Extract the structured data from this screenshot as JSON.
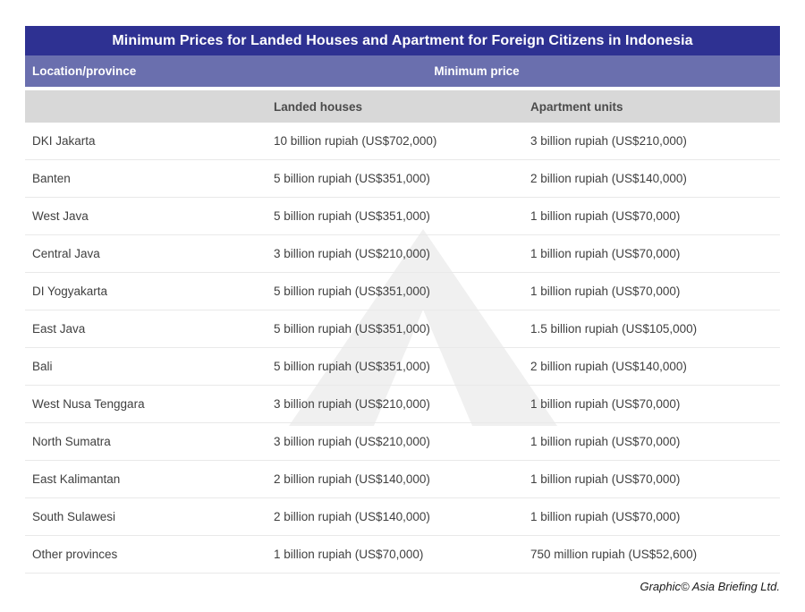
{
  "chart_data": {
    "type": "table",
    "title": "Minimum Prices for Landed Houses and Apartment for Foreign Citizens in Indonesia",
    "column_group": "Minimum price",
    "columns": [
      "Location/province",
      "Landed houses",
      "Apartment units"
    ],
    "rows": [
      {
        "location": "DKI Jakarta",
        "landed": "10 billion rupiah (US$702,000)",
        "apartment": "3 billion rupiah (US$210,000)"
      },
      {
        "location": "Banten",
        "landed": "5 billion rupiah (US$351,000)",
        "apartment": "2 billion rupiah (US$140,000)"
      },
      {
        "location": "West Java",
        "landed": "5 billion rupiah (US$351,000)",
        "apartment": "1 billion rupiah (US$70,000)"
      },
      {
        "location": "Central Java",
        "landed": "3 billion rupiah (US$210,000)",
        "apartment": "1 billion rupiah (US$70,000)"
      },
      {
        "location": "DI Yogyakarta",
        "landed": "5 billion rupiah (US$351,000)",
        "apartment": "1 billion rupiah (US$70,000)"
      },
      {
        "location": "East Java",
        "landed": "5 billion rupiah (US$351,000)",
        "apartment": "1.5 billion rupiah (US$105,000)"
      },
      {
        "location": "Bali",
        "landed": "5 billion rupiah (US$351,000)",
        "apartment": "2 billion rupiah (US$140,000)"
      },
      {
        "location": "West Nusa Tenggara",
        "landed": "3 billion rupiah (US$210,000)",
        "apartment": "1 billion rupiah (US$70,000)"
      },
      {
        "location": "North Sumatra",
        "landed": "3 billion rupiah (US$210,000)",
        "apartment": "1 billion rupiah (US$70,000)"
      },
      {
        "location": "East Kalimantan",
        "landed": "2 billion rupiah (US$140,000)",
        "apartment": "1 billion rupiah (US$70,000)"
      },
      {
        "location": "South Sulawesi",
        "landed": "2 billion rupiah (US$140,000)",
        "apartment": "1 billion rupiah (US$70,000)"
      },
      {
        "location": "Other provinces",
        "landed": "1 billion rupiah (US$70,000)",
        "apartment": "750 million rupiah (US$52,600)"
      }
    ],
    "legend_position": "none",
    "grid": "horizontal row dividers"
  },
  "footer": {
    "credit": "Graphic© Asia Briefing Ltd."
  },
  "icons": {
    "watermark": "asia-briefing-up-arrow-icon"
  },
  "colors": {
    "title_bar": "#2e3192",
    "subheader_bar": "#6a6fae",
    "colheader_bar": "#d8d8d8",
    "colheader_text": "#4b4b4b",
    "header_text": "#ffffff",
    "row_text": "#3f3f3f",
    "divider": "#e9e9e9",
    "watermark": "#f0f0f0",
    "credit_text": "#1a1a1a"
  }
}
